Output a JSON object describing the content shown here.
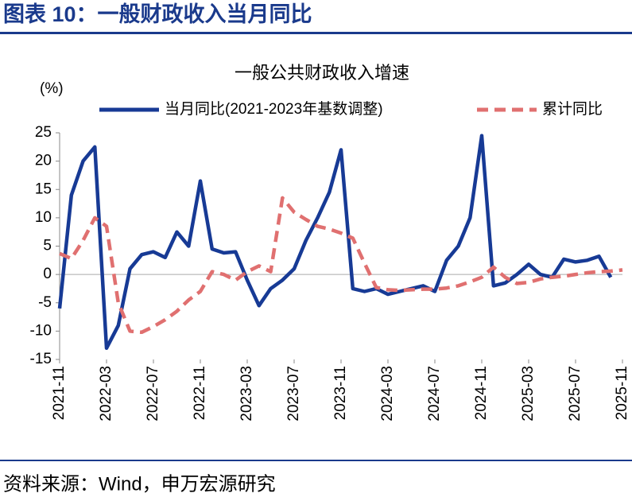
{
  "header": {
    "title": "图表 10：一般财政收入当月同比"
  },
  "chart_data": {
    "type": "line",
    "title": "一般公共财政收入增速",
    "y_label": "(%)",
    "categories": [
      "2021-11",
      null,
      null,
      null,
      "2022-03",
      null,
      null,
      null,
      "2022-07",
      null,
      null,
      null,
      "2022-11",
      null,
      null,
      null,
      "2023-03",
      null,
      null,
      null,
      "2023-07",
      null,
      null,
      null,
      "2023-11",
      null,
      null,
      null,
      "2024-03",
      null,
      null,
      null,
      "2024-07",
      null,
      null,
      null,
      "2024-11",
      null,
      null,
      null,
      "2025-03",
      null,
      null,
      null,
      "2025-07",
      null,
      null,
      null,
      "2025-11"
    ],
    "series": [
      {
        "name": "当月同比(2021-2023年基数调整)",
        "color": "#173a95",
        "dash": false,
        "values": [
          -6,
          14,
          20,
          22.5,
          -13,
          -9,
          1,
          3.5,
          4,
          3,
          7.5,
          5,
          16.5,
          4.5,
          3.8,
          4,
          -1,
          -5.5,
          -2.5,
          -1,
          1,
          6,
          10,
          14.5,
          22,
          -2.5,
          -3,
          -2.5,
          -3.5,
          -3,
          -2.5,
          -2,
          -3,
          2.5,
          5,
          10,
          24.5,
          -2,
          -1.5,
          0,
          1.8,
          0,
          -0.5,
          2.7,
          2.2,
          2.5,
          3.2,
          -0.5,
          null
        ]
      },
      {
        "name": "累计同比",
        "color": "#e07070",
        "dash": true,
        "values": [
          3.7,
          2.8,
          6,
          10,
          8.5,
          -5,
          -10,
          -10.2,
          -9.2,
          -8,
          -6.5,
          -4.5,
          -3,
          0.5,
          0,
          -1,
          0.5,
          1.5,
          0.5,
          13.5,
          11,
          9.7,
          8.5,
          8,
          7.3,
          6.4,
          2,
          -2.3,
          -2.7,
          -2.8,
          -2.7,
          -2.6,
          -2.6,
          -2.4,
          -2,
          -1.3,
          -0.5,
          1.3,
          -0.5,
          -1.6,
          -1.4,
          -0.8,
          -0.5,
          -0.3,
          0,
          0.3,
          0.5,
          0.6,
          0.8
        ]
      }
    ],
    "ylim": [
      -15,
      25
    ],
    "yticks": [
      -15,
      -10,
      -5,
      0,
      5,
      10,
      15,
      20,
      25
    ]
  },
  "footer": {
    "source": "资料来源：Wind，申万宏源研究"
  }
}
